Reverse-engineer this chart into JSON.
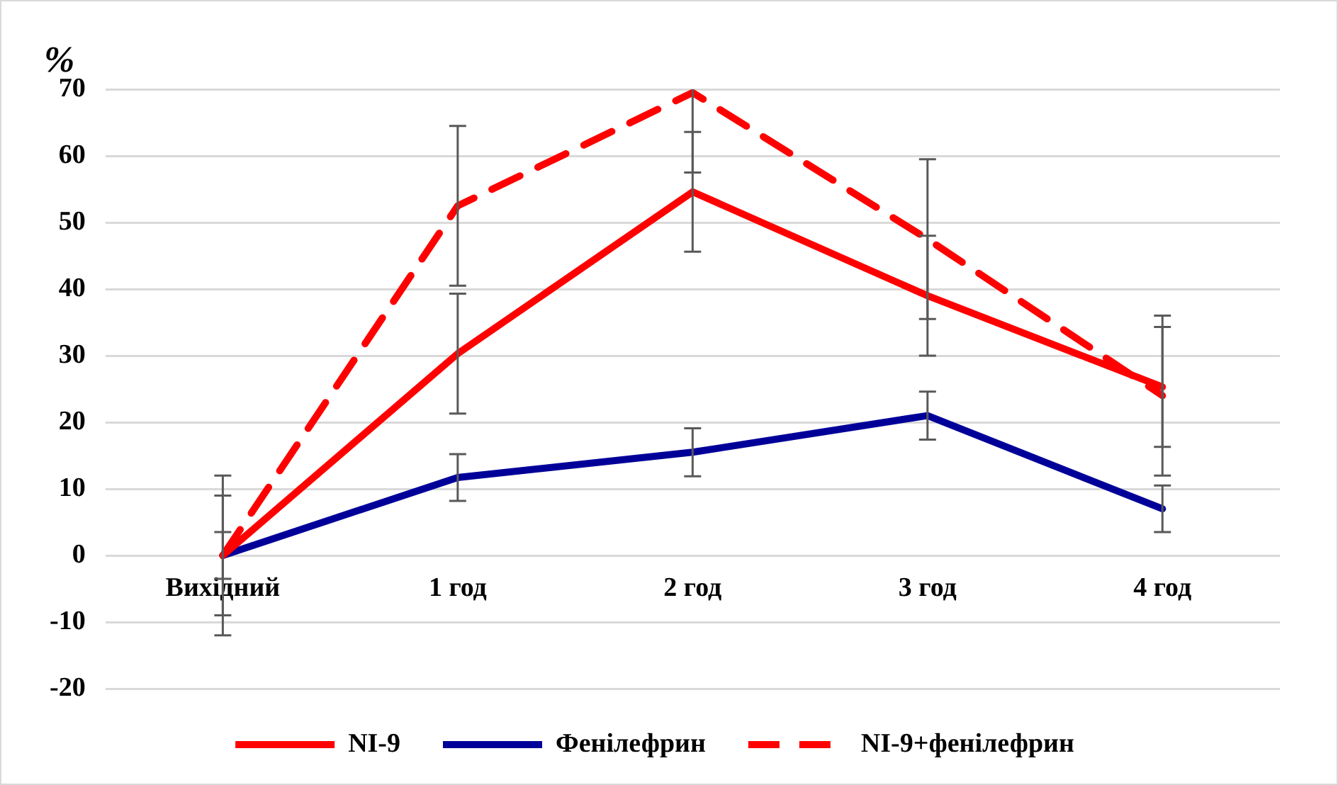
{
  "chart_data": {
    "type": "line",
    "ylabel": "%",
    "categories": [
      "Вихідний",
      "1 год",
      "2 год",
      "3 год",
      "4 год"
    ],
    "series": [
      {
        "name": "NI-9",
        "color": "#ff0000",
        "line_style": "solid",
        "values": [
          0,
          30.3,
          54.6,
          39,
          25.3
        ],
        "errors": [
          9,
          9,
          9,
          9,
          9
        ]
      },
      {
        "name": "Фенілефрин",
        "color": "#000099",
        "line_style": "solid",
        "values": [
          0,
          11.7,
          15.5,
          21,
          7
        ],
        "errors": [
          3.5,
          3.5,
          3.6,
          3.6,
          3.5
        ]
      },
      {
        "name": "NI-9+фенілефрин",
        "color": "#ff0000",
        "line_style": "dashed",
        "values": [
          0,
          52.5,
          69.5,
          47.5,
          24
        ],
        "errors": [
          12,
          12,
          [
            57.5,
            70
          ],
          12,
          12
        ]
      }
    ],
    "ylim": [
      -20,
      70
    ],
    "yticks": [
      -20,
      -10,
      0,
      10,
      20,
      30,
      40,
      50,
      60,
      70
    ],
    "grid": "y",
    "legend": "bottom",
    "marker": "none"
  }
}
